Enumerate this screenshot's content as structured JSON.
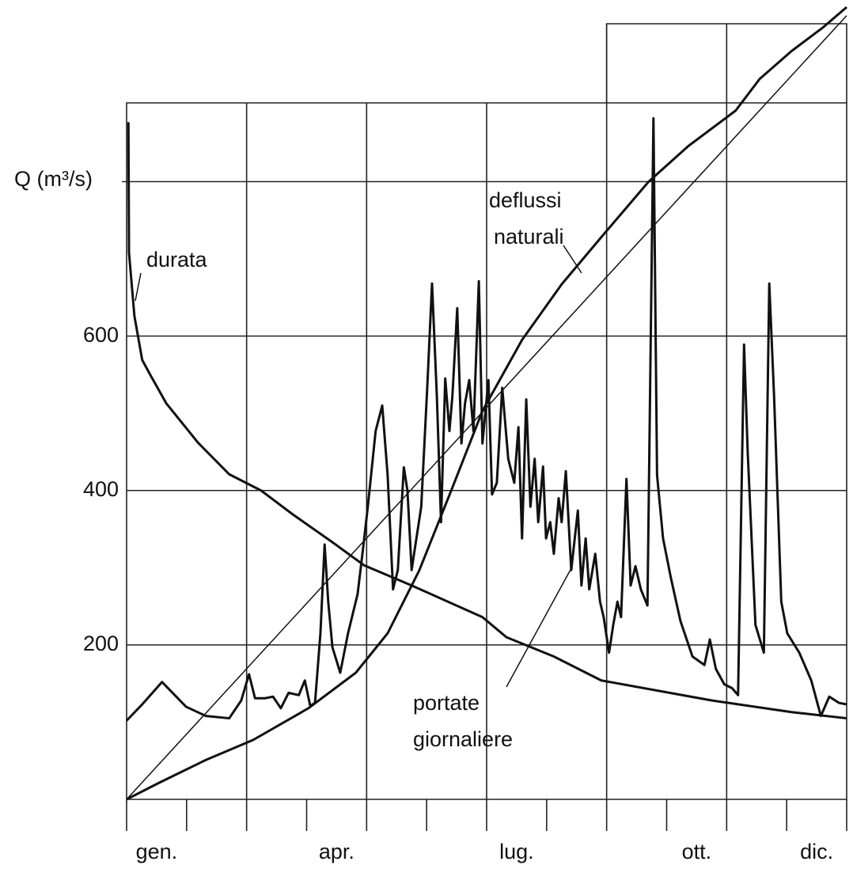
{
  "chart_data": {
    "type": "line",
    "y_label": "Q (m³/s)",
    "xlim": [
      0,
      12
    ],
    "ylim": [
      0,
      1025
    ],
    "yticks": [
      200,
      400,
      600
    ],
    "xticks": [
      {
        "value": 0.5,
        "label": "gen."
      },
      {
        "value": 3.5,
        "label": "apr."
      },
      {
        "value": 6.5,
        "label": "lug."
      },
      {
        "value": 9.5,
        "label": "ott."
      },
      {
        "value": 11.5,
        "label": "dic."
      }
    ],
    "grid": true,
    "series": [
      {
        "name": "durata",
        "color": "#111",
        "width": 3,
        "x": [
          0.03,
          0.04,
          0.13,
          0.26,
          0.4,
          0.66,
          1.19,
          1.71,
          2.24,
          2.77,
          3.43,
          3.96,
          4.75,
          5.93,
          6.33,
          7.12,
          7.91,
          9.76,
          11.08,
          12
        ],
        "values": [
          877,
          708,
          626,
          569,
          549,
          513,
          462,
          421,
          400,
          369,
          333,
          303,
          277,
          236,
          210,
          185,
          154,
          128,
          113,
          105
        ]
      },
      {
        "name": "deflussi naturali",
        "color": "#111",
        "width": 3,
        "x": [
          0,
          0.53,
          1.32,
          2.11,
          3.03,
          3.82,
          4.35,
          4.88,
          5.41,
          5.93,
          6.59,
          7.25,
          7.91,
          8.7,
          9.36,
          10.15,
          10.55,
          11.08,
          11.61,
          12
        ],
        "values": [
          0,
          21,
          51,
          77,
          118,
          164,
          215,
          297,
          400,
          503,
          595,
          667,
          728,
          800,
          846,
          892,
          933,
          969,
          1000,
          1026
        ]
      },
      {
        "color": "#111",
        "width": 1.5,
        "x": [
          0,
          12
        ],
        "values": [
          0,
          1015
        ]
      },
      {
        "name": "portate giornaliere",
        "color": "#111",
        "width": 3,
        "x": [
          0,
          0.26,
          0.59,
          0.99,
          1.32,
          1.71,
          1.91,
          2.04,
          2.14,
          2.31,
          2.44,
          2.57,
          2.7,
          2.87,
          2.97,
          3.06,
          3.14,
          3.23,
          3.3,
          3.36,
          3.43,
          3.56,
          3.69,
          3.85,
          3.93,
          4.02,
          4.15,
          4.26,
          4.35,
          4.44,
          4.52,
          4.62,
          4.68,
          4.75,
          4.81,
          4.91,
          5.01,
          5.09,
          5.17,
          5.24,
          5.31,
          5.38,
          5.43,
          5.51,
          5.58,
          5.64,
          5.71,
          5.78,
          5.87,
          5.93,
          6.03,
          6.09,
          6.17,
          6.26,
          6.36,
          6.46,
          6.53,
          6.59,
          6.66,
          6.73,
          6.8,
          6.86,
          6.94,
          6.99,
          7.06,
          7.12,
          7.2,
          7.25,
          7.32,
          7.41,
          7.52,
          7.58,
          7.65,
          7.71,
          7.81,
          7.89,
          7.95,
          8.04,
          8.11,
          8.18,
          8.24,
          8.33,
          8.4,
          8.48,
          8.57,
          8.68,
          8.78,
          8.84,
          8.94,
          9.07,
          9.23,
          9.43,
          9.63,
          9.72,
          9.82,
          9.96,
          10.09,
          10.19,
          10.29,
          10.35,
          10.48,
          10.62,
          10.71,
          10.79,
          10.91,
          11.01,
          11.21,
          11.41,
          11.57,
          11.71,
          11.87,
          12
        ],
        "values": [
          102,
          123,
          152,
          120,
          108,
          105,
          128,
          162,
          131,
          131,
          133,
          118,
          138,
          135,
          154,
          121,
          125,
          215,
          330,
          256,
          197,
          164,
          215,
          266,
          318,
          379,
          477,
          510,
          420,
          272,
          297,
          430,
          400,
          297,
          328,
          379,
          533,
          668,
          523,
          359,
          545,
          477,
          523,
          636,
          461,
          513,
          543,
          477,
          671,
          461,
          543,
          395,
          410,
          533,
          441,
          410,
          482,
          338,
          518,
          379,
          441,
          359,
          431,
          338,
          359,
          318,
          390,
          359,
          425,
          297,
          374,
          277,
          338,
          272,
          318,
          256,
          236,
          190,
          226,
          256,
          236,
          415,
          277,
          302,
          272,
          251,
          882,
          420,
          338,
          287,
          231,
          185,
          174,
          207,
          169,
          149,
          144,
          135,
          589,
          451,
          226,
          190,
          668,
          523,
          256,
          215,
          190,
          154,
          108,
          133,
          125,
          123
        ]
      }
    ]
  }
}
